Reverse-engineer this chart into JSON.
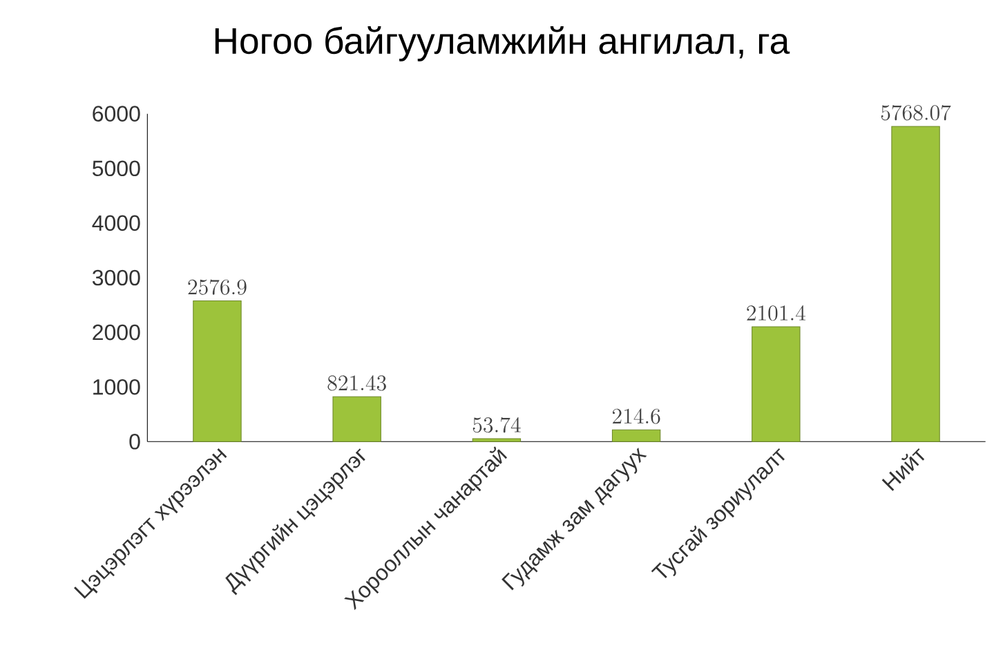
{
  "chart_data": {
    "type": "bar",
    "title": "Ногоо байгууламжийн ангилал, га",
    "categories": [
      "Цэцэрлэгт хүрээлэн",
      "Дүүргийн цэцэрлэг",
      "Хорооллын чанартай",
      "Гудамж зам дагуух",
      "Тусгай зориулалт",
      "Нийт"
    ],
    "values": [
      2576.9,
      821.43,
      53.74,
      214.6,
      2101.4,
      5768.07
    ],
    "color": "#9dc33b",
    "ylim": [
      0,
      6000
    ],
    "yticks": [
      0,
      1000,
      2000,
      3000,
      4000,
      5000,
      6000
    ],
    "data_labels": true
  }
}
